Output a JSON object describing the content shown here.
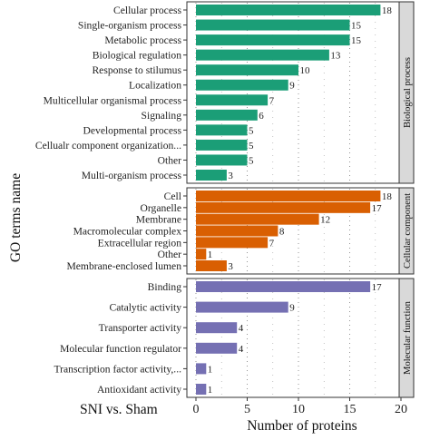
{
  "chart_data": {
    "type": "bar",
    "orientation": "horizontal",
    "xlabel": "Number of proteins",
    "ylabel": "GO terms name",
    "caption": "SNI vs. Sham",
    "xlim": [
      0,
      20
    ],
    "xticks": [
      0,
      5,
      10,
      15,
      20
    ],
    "grid": "dotted",
    "panels": [
      {
        "name": "Biological process",
        "color": "#1b9e77",
        "categories": [
          "Cellular process",
          "Single-organism process",
          "Metabolic process",
          "Biological regulation",
          "Response to stilumus",
          "Localization",
          "Multicellular organismal process",
          "Signaling",
          "Developmental process",
          "Cellualr component organization...",
          "Other",
          "Multi-organism process"
        ],
        "values": [
          18,
          15,
          15,
          13,
          10,
          9,
          7,
          6,
          5,
          5,
          5,
          3
        ]
      },
      {
        "name": "Cellular component",
        "color": "#d95f02",
        "categories": [
          "Cell",
          "Organelle",
          "Membrane",
          "Macromolecular complex",
          "Extracellular region",
          "Other",
          "Membrane-enclosed lumen"
        ],
        "values": [
          18,
          17,
          12,
          8,
          7,
          1,
          3
        ]
      },
      {
        "name": "Molecular function",
        "color": "#7570b3",
        "categories": [
          "Binding",
          "Catalytic activity",
          "Transporter activity",
          "Molecular function regulator",
          "Transcription factor activity,...",
          "Antioxidant activity"
        ],
        "values": [
          17,
          9,
          4,
          4,
          1,
          1
        ]
      }
    ]
  }
}
